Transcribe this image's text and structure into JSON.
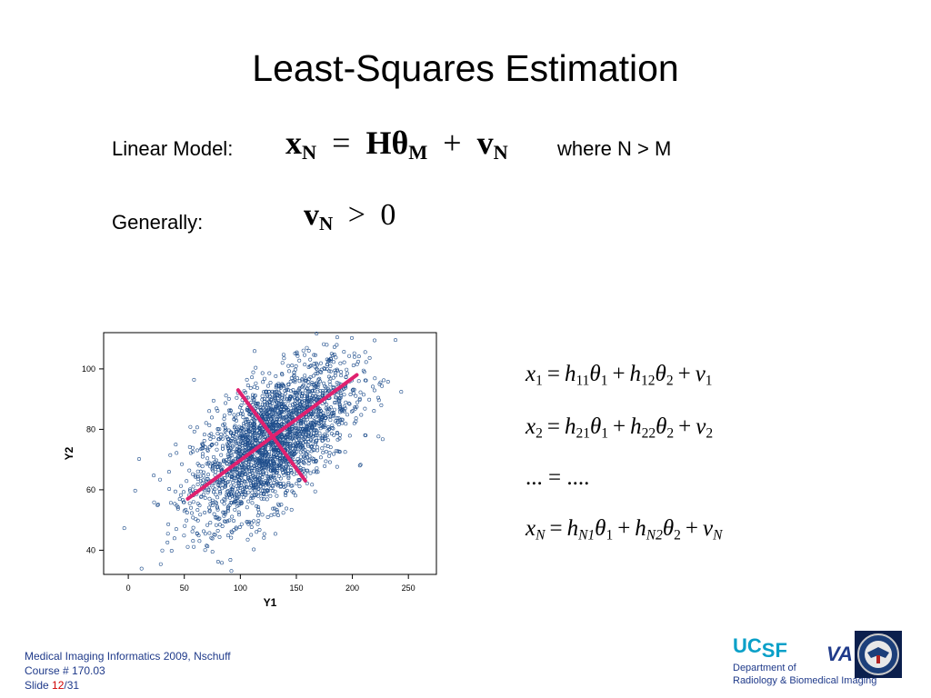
{
  "slide": {
    "title": "Least-Squares Estimation",
    "linear_model_label": "Linear Model:",
    "generally_label": "Generally:",
    "where_text": "where N > M"
  },
  "model_equation": {
    "x": "x",
    "x_sub": "N",
    "eq": "=",
    "H": "Hθ",
    "H_sub": "M",
    "plus": "+",
    "v": "v",
    "v_sub": "N"
  },
  "noise_equation": {
    "v": "v",
    "v_sub": "N",
    "gt": ">",
    "zero": "0"
  },
  "equations": [
    {
      "lhs": "x",
      "lhs_sub": "1",
      "h1": "h",
      "h1_sub": "11",
      "t1": "θ",
      "t1_sub": "1",
      "h2": "h",
      "h2_sub": "12",
      "t2": "θ",
      "t2_sub": "2",
      "v": "v",
      "v_sub": "1"
    },
    {
      "lhs": "x",
      "lhs_sub": "2",
      "h1": "h",
      "h1_sub": "21",
      "t1": "θ",
      "t1_sub": "1",
      "h2": "h",
      "h2_sub": "22",
      "t2": "θ",
      "t2_sub": "2",
      "v": "v",
      "v_sub": "2"
    },
    {
      "ellipsis": "... = ...."
    },
    {
      "lhs": "x",
      "lhs_sub": "N",
      "h1": "h",
      "h1_sub": "N1",
      "t1": "θ",
      "t1_sub": "1",
      "h2": "h",
      "h2_sub": "N2",
      "t2": "θ",
      "t2_sub": "2",
      "v": "v",
      "v_sub": "N"
    }
  ],
  "chart_data": {
    "type": "scatter",
    "xlabel": "Y1",
    "ylabel": "Y2",
    "xlim": [
      -22,
      275
    ],
    "ylim": [
      32,
      112
    ],
    "xticks": [
      "0",
      "50",
      "100",
      "150",
      "200",
      "250"
    ],
    "yticks": [
      "40",
      "60",
      "80",
      "100"
    ],
    "distribution": {
      "mean": [
        128,
        76
      ],
      "sd": [
        35,
        13
      ],
      "correlation": 0.62,
      "n_points": 2500
    },
    "principal_axes": [
      {
        "x": [
          53,
          204
        ],
        "y": [
          57,
          98
        ]
      },
      {
        "x": [
          98,
          158
        ],
        "y": [
          93,
          63
        ]
      }
    ],
    "point_color": "#1f4e8c",
    "line_color": "#e0216f"
  },
  "footer": {
    "line1": "Medical Imaging Informatics 2009, Nschuff",
    "line2": "Course # 170.03",
    "slide_label": "Slide",
    "slide_num": "12",
    "slide_total": "/31"
  },
  "logos": {
    "uc": "UC",
    "sf": "SF",
    "dept_line1": "Department of",
    "dept_line2": "Radiology & Biomedical Imaging",
    "va": "VA"
  }
}
